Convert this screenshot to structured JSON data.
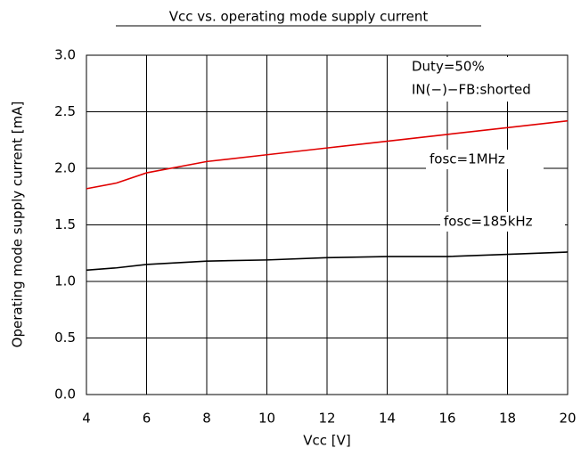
{
  "chart_data": {
    "type": "line",
    "title": "Vcc vs. operating mode supply current",
    "x_label": "Vcc  [V]",
    "y_label": "Operating mode supply current  [mA]",
    "annotations": [
      "Duty=50%",
      "IN(−)−FB:shorted",
      "fosc=1MHz",
      "fosc=185kHz"
    ],
    "x": [
      4,
      5,
      6,
      8,
      10,
      12,
      14,
      16,
      18,
      20
    ],
    "series": [
      {
        "name": "fosc=1MHz",
        "color": "#e00000",
        "values": [
          1.82,
          1.87,
          1.96,
          2.06,
          2.12,
          2.18,
          2.24,
          2.3,
          2.36,
          2.42
        ]
      },
      {
        "name": "fosc=185kHz",
        "color": "#000000",
        "values": [
          1.1,
          1.12,
          1.15,
          1.18,
          1.19,
          1.21,
          1.22,
          1.22,
          1.24,
          1.26
        ]
      }
    ],
    "xlim": [
      4,
      20
    ],
    "xticks": [
      4,
      6,
      8,
      10,
      12,
      14,
      16,
      18,
      20
    ],
    "ylim": [
      0,
      3
    ],
    "yticks": [
      {
        "value": 0,
        "label": "0.0"
      },
      0.5,
      {
        "value": 1,
        "label": "1.0"
      },
      1.5,
      {
        "value": 2,
        "label": "2.0"
      },
      2.5,
      {
        "value": 3,
        "label": "3.0"
      }
    ],
    "grid": true
  }
}
